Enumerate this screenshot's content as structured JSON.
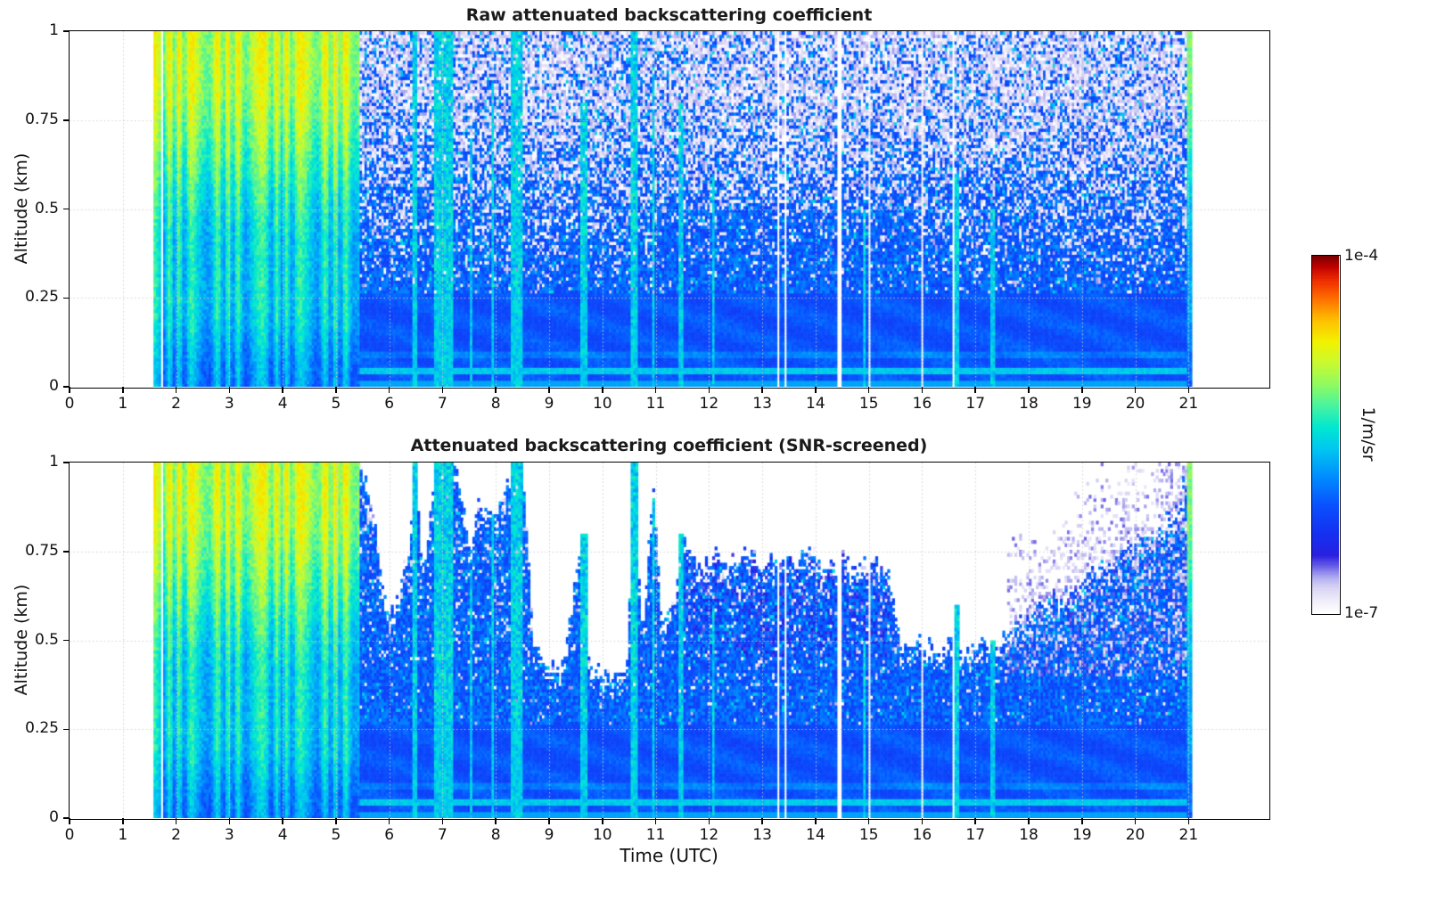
{
  "figure": {
    "background": "#ffffff"
  },
  "xlabel": "Time (UTC)",
  "chart_data": [
    {
      "type": "heatmap",
      "title": "Raw attenuated backscattering coefficient",
      "ylabel": "Altitude (km)",
      "xlabel": "",
      "xlim": [
        0,
        22.5
      ],
      "ylim": [
        0,
        1
      ],
      "x_ticks": [
        0,
        1,
        2,
        3,
        4,
        5,
        6,
        7,
        8,
        9,
        10,
        11,
        12,
        13,
        14,
        15,
        16,
        17,
        18,
        19,
        20,
        21
      ],
      "y_ticks": [
        0,
        0.25,
        0.5,
        0.75,
        1
      ],
      "y_tick_labels": [
        "0",
        "0.25",
        "0.5",
        "0.75",
        "1"
      ],
      "grid": "dotted",
      "value_range": [
        "1e-7",
        "1e-4"
      ],
      "units": "1/m/sr",
      "features": [
        "No data (white) before ~1.6 UTC and after ~21.1 UTC",
        "Strong backscatter plume 1.6-5.4 UTC through full 0-1 km depth, green/yellow (~1e-5) aloft, cyan-blue near surface",
        "After 5.4 UTC: solid blue (~1e-6) below ~0.25 km with speckled noise (white/pale pixels) increasing with altitude",
        "Thin enhanced aerosol layer near 0.05 km altitude across the whole day",
        "Narrow cyan streak columns near 6.5, 7.0, 8.3-8.5, 9.6, 10.6, 11.5 UTC",
        "Thin white data-gap columns near 1.75, 13.3, 14.4, 15.0, 16.0, 16.6 UTC",
        "Bright green/yellow column again at ~21.0 UTC"
      ]
    },
    {
      "type": "heatmap",
      "title": "Attenuated backscattering coefficient (SNR-screened)",
      "ylabel": "Altitude (km)",
      "xlabel": "Time (UTC)",
      "xlim": [
        0,
        22.5
      ],
      "ylim": [
        0,
        1
      ],
      "x_ticks": [
        0,
        1,
        2,
        3,
        4,
        5,
        6,
        7,
        8,
        9,
        10,
        11,
        12,
        13,
        14,
        15,
        16,
        17,
        18,
        19,
        20,
        21
      ],
      "y_ticks": [
        0,
        0.25,
        0.5,
        0.75,
        1
      ],
      "y_tick_labels": [
        "0",
        "0.25",
        "0.5",
        "0.75",
        "1"
      ],
      "grid": "dotted",
      "value_range": [
        "1e-7",
        "1e-4"
      ],
      "units": "1/m/sr",
      "features": [
        "Same field as raw panel but low-SNR pixels removed (white)",
        "Valid data everywhere during the 1.6-5.4 UTC plume",
        "5.5-11 UTC: screened above ~0.4-0.6 km except cyan streak columns reaching 1 km",
        "11.5-15.3 UTC: valid data up to ~0.70-0.78 km",
        "15.5-17.5 UTC: valid data up to ~0.5 km",
        "17.5-21 UTC: boundary rises from ~0.55 to ~0.85 km with grainy pale speckle near the edge"
      ]
    }
  ],
  "colorbar": {
    "max_label": "1e-4",
    "min_label": "1e-7",
    "units_label": "1/m/sr",
    "colormap_stops": [
      [
        0.0,
        "#ffffff"
      ],
      [
        0.03,
        "#f2f0fb"
      ],
      [
        0.07,
        "#d8d4f4"
      ],
      [
        0.1,
        "#aeaaf0"
      ],
      [
        0.13,
        "#6a5fe8"
      ],
      [
        0.16,
        "#2a20e0"
      ],
      [
        0.22,
        "#1530f0"
      ],
      [
        0.3,
        "#0a50ff"
      ],
      [
        0.38,
        "#008cff"
      ],
      [
        0.46,
        "#00c8f0"
      ],
      [
        0.52,
        "#00e8d0"
      ],
      [
        0.58,
        "#48f4a0"
      ],
      [
        0.64,
        "#90fa60"
      ],
      [
        0.7,
        "#c8fa30"
      ],
      [
        0.76,
        "#f2f200"
      ],
      [
        0.82,
        "#ffc000"
      ],
      [
        0.88,
        "#ff7000"
      ],
      [
        0.93,
        "#f03000"
      ],
      [
        0.97,
        "#c00000"
      ],
      [
        1.0,
        "#7a0000"
      ]
    ]
  },
  "render": {
    "nx": 500,
    "ny": 110,
    "data_start_utc": 1.58,
    "data_end_utc": 21.08,
    "strong_plume_end_utc": 5.45,
    "end_column_start_utc": 20.98,
    "gaps_utc": [
      [
        1.72,
        1.77
      ],
      [
        13.28,
        13.33
      ],
      [
        13.43,
        13.47
      ],
      [
        14.38,
        14.49
      ],
      [
        15.0,
        15.05
      ],
      [
        15.99,
        16.04
      ],
      [
        16.55,
        16.61
      ]
    ],
    "precip_streaks": [
      [
        6.42,
        6.52,
        1.0
      ],
      [
        6.85,
        7.2,
        1.0
      ],
      [
        7.5,
        7.56,
        0.7
      ],
      [
        7.9,
        7.97,
        0.85
      ],
      [
        8.28,
        8.5,
        1.0
      ],
      [
        9.6,
        9.72,
        0.8
      ],
      [
        10.55,
        10.65,
        1.0
      ],
      [
        10.95,
        11.0,
        0.9
      ],
      [
        11.45,
        11.52,
        0.8
      ],
      [
        12.05,
        12.12,
        0.6
      ],
      [
        14.9,
        14.96,
        0.5
      ],
      [
        16.62,
        16.68,
        0.6
      ],
      [
        17.3,
        17.35,
        0.5
      ]
    ],
    "snr_mask_boundary": [
      [
        5.45,
        1.02
      ],
      [
        5.7,
        0.85
      ],
      [
        6.0,
        0.55
      ],
      [
        6.35,
        0.75
      ],
      [
        6.5,
        1.0
      ],
      [
        6.62,
        0.7
      ],
      [
        6.9,
        1.0
      ],
      [
        7.25,
        1.0
      ],
      [
        7.5,
        0.75
      ],
      [
        7.7,
        0.9
      ],
      [
        8.0,
        0.85
      ],
      [
        8.3,
        1.0
      ],
      [
        8.55,
        0.95
      ],
      [
        8.7,
        0.5
      ],
      [
        9.0,
        0.42
      ],
      [
        9.3,
        0.45
      ],
      [
        9.6,
        0.8
      ],
      [
        9.75,
        0.45
      ],
      [
        10.1,
        0.4
      ],
      [
        10.45,
        0.42
      ],
      [
        10.6,
        1.0
      ],
      [
        10.75,
        0.5
      ],
      [
        10.95,
        0.95
      ],
      [
        11.1,
        0.55
      ],
      [
        11.35,
        0.6
      ],
      [
        11.55,
        0.78
      ],
      [
        11.8,
        0.7
      ],
      [
        12.1,
        0.75
      ],
      [
        12.4,
        0.72
      ],
      [
        12.7,
        0.76
      ],
      [
        13.0,
        0.7
      ],
      [
        13.3,
        0.74
      ],
      [
        13.6,
        0.72
      ],
      [
        13.9,
        0.76
      ],
      [
        14.2,
        0.71
      ],
      [
        14.5,
        0.74
      ],
      [
        14.8,
        0.7
      ],
      [
        15.1,
        0.73
      ],
      [
        15.35,
        0.7
      ],
      [
        15.6,
        0.48
      ],
      [
        15.9,
        0.52
      ],
      [
        16.2,
        0.47
      ],
      [
        16.5,
        0.5
      ],
      [
        16.8,
        0.46
      ],
      [
        17.1,
        0.52
      ],
      [
        17.4,
        0.48
      ],
      [
        17.7,
        0.55
      ],
      [
        18.0,
        0.58
      ],
      [
        18.4,
        0.62
      ],
      [
        18.8,
        0.66
      ],
      [
        19.2,
        0.7
      ],
      [
        19.6,
        0.74
      ],
      [
        20.0,
        0.78
      ],
      [
        20.4,
        0.82
      ],
      [
        20.8,
        0.86
      ],
      [
        20.98,
        1.02
      ]
    ]
  }
}
